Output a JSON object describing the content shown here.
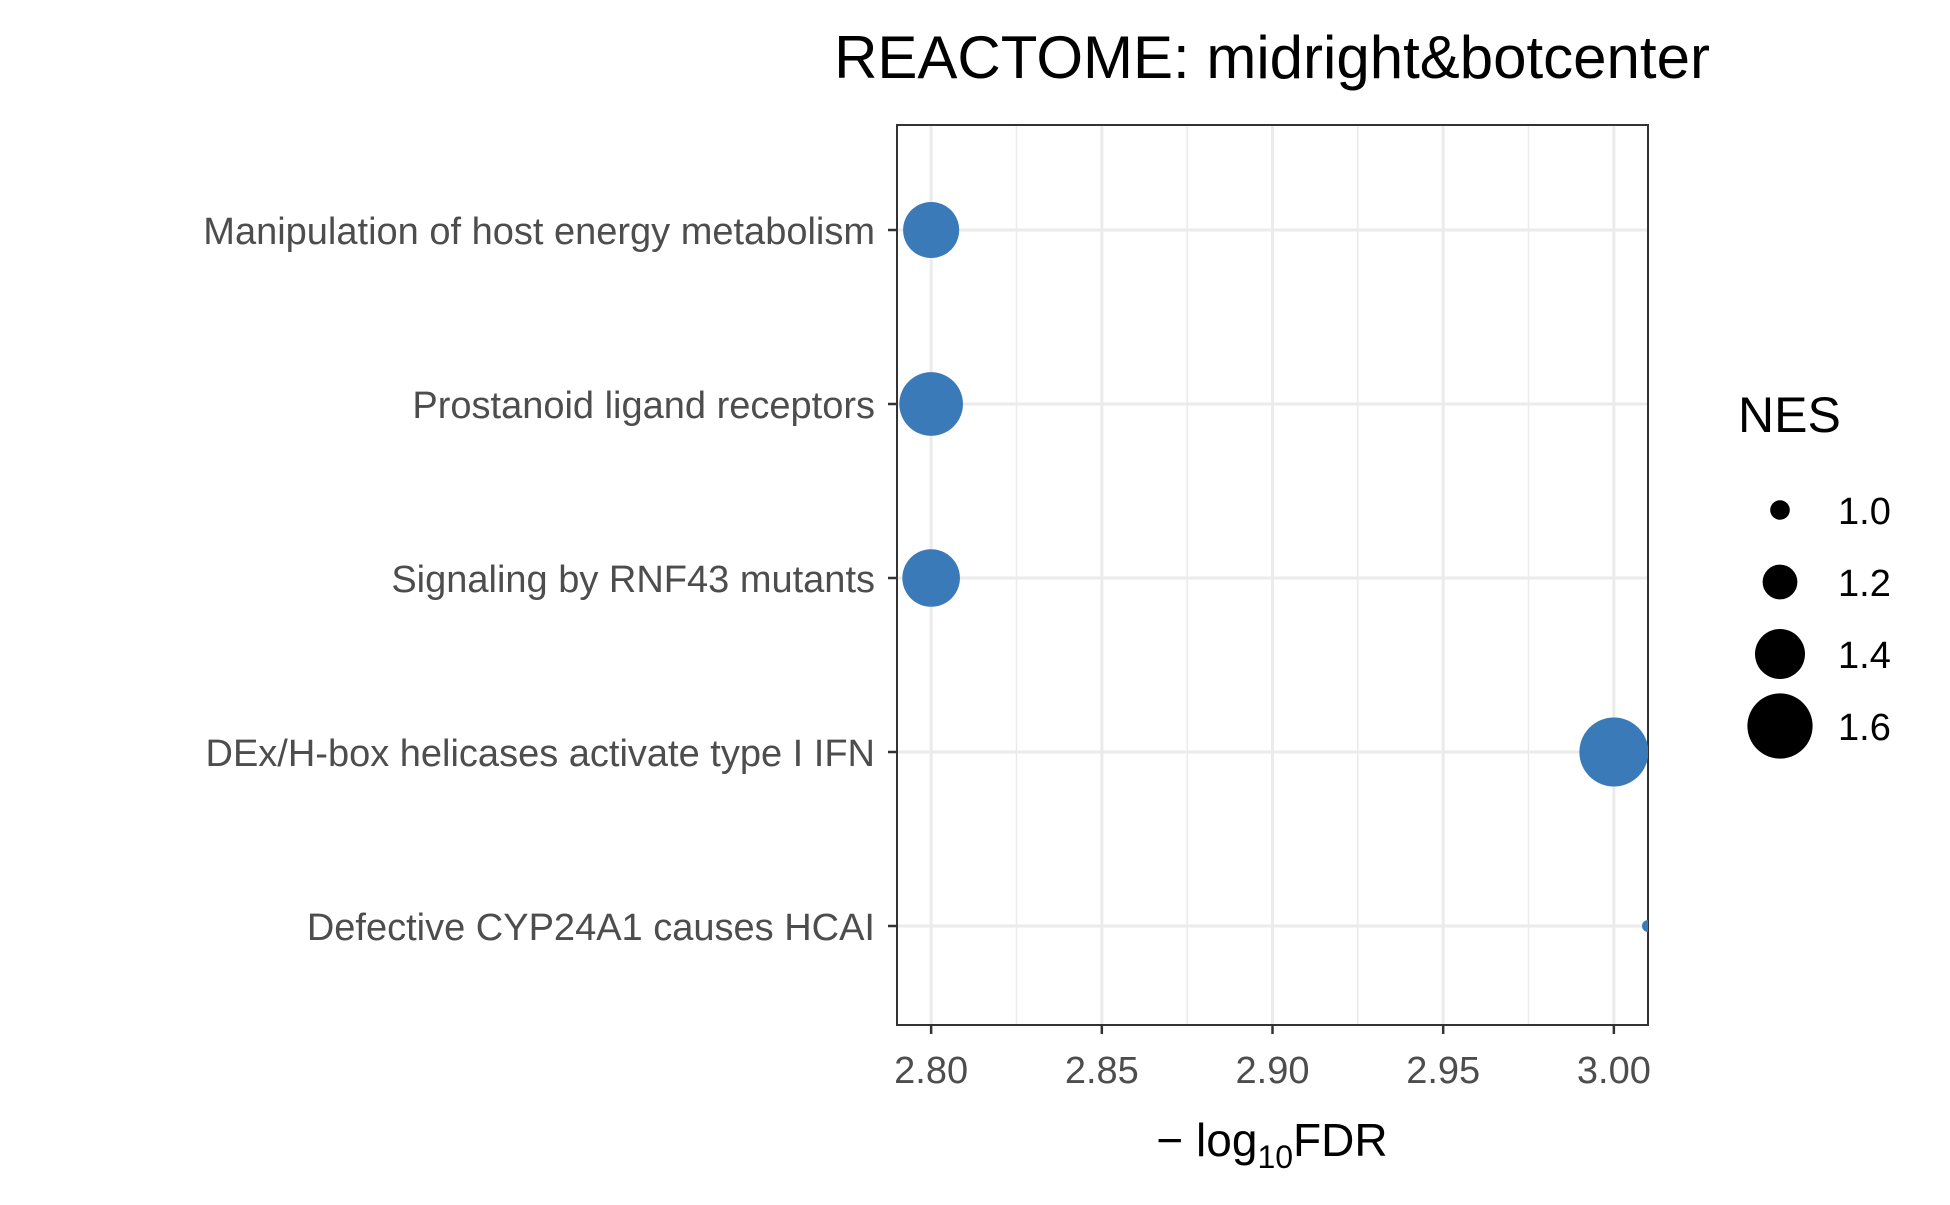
{
  "chart_data": {
    "type": "scatter",
    "title": "REACTOME: midright&botcenter",
    "xlabel": {
      "prefix": "− log",
      "subscript": "10",
      "suffix": "FDR"
    },
    "ylabel": "",
    "xlim": [
      2.79,
      3.01
    ],
    "x_ticks": [
      2.8,
      2.85,
      2.9,
      2.95,
      3.0
    ],
    "x_tick_labels": [
      "2.80",
      "2.85",
      "2.90",
      "2.95",
      "3.00"
    ],
    "grid": true,
    "point_color": "#3a7ab8",
    "categories": [
      "Manipulation of host energy metabolism",
      "Prostanoid ligand receptors",
      "Signaling by RNF43 mutants",
      "DEx/H-box helicases activate type I IFN ",
      "Defective CYP24A1 causes HCAI"
    ],
    "points": [
      {
        "category": "Manipulation of host energy metabolism",
        "x": 2.8,
        "size": 1.48
      },
      {
        "category": "Prostanoid ligand receptors",
        "x": 2.8,
        "size": 1.58
      },
      {
        "category": "Signaling by RNF43 mutants",
        "x": 2.8,
        "size": 1.5
      },
      {
        "category": "DEx/H-box helicases activate type I IFN ",
        "x": 3.0,
        "size": 1.65
      },
      {
        "category": "Defective CYP24A1 causes HCAI",
        "x": 3.01,
        "size": 0.9
      }
    ],
    "legend": {
      "title": "NES",
      "position": "right",
      "entries": [
        {
          "label": "1.0",
          "value": 1.0
        },
        {
          "label": "1.2",
          "value": 1.2
        },
        {
          "label": "1.4",
          "value": 1.4
        },
        {
          "label": "1.6",
          "value": 1.6
        }
      ]
    }
  }
}
